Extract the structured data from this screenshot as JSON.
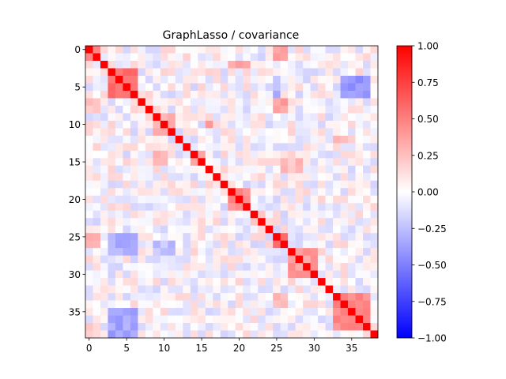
{
  "chart_data": {
    "type": "heatmap",
    "title": "GraphLasso / covariance",
    "n": 39,
    "x_ticks": [
      0,
      5,
      10,
      15,
      20,
      25,
      30,
      35
    ],
    "y_ticks": [
      0,
      5,
      10,
      15,
      20,
      25,
      30,
      35
    ],
    "colorbar": {
      "colormap": "bwr",
      "min": -1.0,
      "max": 1.0,
      "ticks": [
        1.0,
        0.75,
        0.5,
        0.25,
        0.0,
        -0.25,
        -0.5,
        -0.75,
        -1.0
      ],
      "tick_labels": [
        "1.00",
        "0.75",
        "0.50",
        "0.25",
        "0.00",
        "−0.25",
        "−0.50",
        "−0.75",
        "−1.00"
      ]
    },
    "diagonal_value": 1.0,
    "blocks": [
      {
        "rows": [
          0,
          1
        ],
        "cols": [
          0,
          1
        ],
        "value": 0.5
      },
      {
        "rows": [
          3,
          6
        ],
        "cols": [
          3,
          6
        ],
        "value": 0.55
      },
      {
        "rows": [
          9,
          11
        ],
        "cols": [
          9,
          11
        ],
        "value": 0.35
      },
      {
        "rows": [
          14,
          15
        ],
        "cols": [
          14,
          15
        ],
        "value": 0.4
      },
      {
        "rows": [
          19,
          21
        ],
        "cols": [
          19,
          21
        ],
        "value": 0.45
      },
      {
        "rows": [
          22,
          23
        ],
        "cols": [
          22,
          23
        ],
        "value": 0.3
      },
      {
        "rows": [
          25,
          26
        ],
        "cols": [
          25,
          26
        ],
        "value": 0.55
      },
      {
        "rows": [
          27,
          30
        ],
        "cols": [
          27,
          30
        ],
        "value": 0.4
      },
      {
        "rows": [
          33,
          37
        ],
        "cols": [
          33,
          37
        ],
        "value": 0.45
      }
    ],
    "offdiagonal_blocks": [
      {
        "rows": [
          4,
          6
        ],
        "cols": [
          34,
          37
        ],
        "value": -0.4
      },
      {
        "rows": [
          4,
          6
        ],
        "cols": [
          25,
          25
        ],
        "value": -0.3
      },
      {
        "rows": [
          25,
          27
        ],
        "cols": [
          3,
          6
        ],
        "value": -0.3
      },
      {
        "rows": [
          35,
          38
        ],
        "cols": [
          3,
          6
        ],
        "value": -0.35
      },
      {
        "rows": [
          26,
          27
        ],
        "cols": [
          9,
          11
        ],
        "value": -0.25
      },
      {
        "rows": [
          0,
          1
        ],
        "cols": [
          25,
          26
        ],
        "value": 0.35
      },
      {
        "rows": [
          25,
          26
        ],
        "cols": [
          0,
          1
        ],
        "value": 0.3
      },
      {
        "rows": [
          2,
          2
        ],
        "cols": [
          19,
          21
        ],
        "value": 0.35
      },
      {
        "rows": [
          7,
          8
        ],
        "cols": [
          25,
          26
        ],
        "value": 0.4
      },
      {
        "rows": [
          7,
          8
        ],
        "cols": [
          0,
          1
        ],
        "value": 0.2
      },
      {
        "rows": [
          33,
          34
        ],
        "cols": [
          25,
          26
        ],
        "value": 0.3
      },
      {
        "rows": [
          12,
          12
        ],
        "cols": [
          33,
          35
        ],
        "value": 0.25
      },
      {
        "rows": [
          14,
          15
        ],
        "cols": [
          9,
          10
        ],
        "value": 0.3
      },
      {
        "rows": [
          10,
          10
        ],
        "cols": [
          16,
          16
        ],
        "value": 0.4
      },
      {
        "rows": [
          15,
          16
        ],
        "cols": [
          26,
          28
        ],
        "value": 0.25
      },
      {
        "rows": [
          37,
          38
        ],
        "cols": [
          0,
          1
        ],
        "value": 0.2
      }
    ],
    "noise_amplitude": 0.18,
    "seed": 7
  }
}
